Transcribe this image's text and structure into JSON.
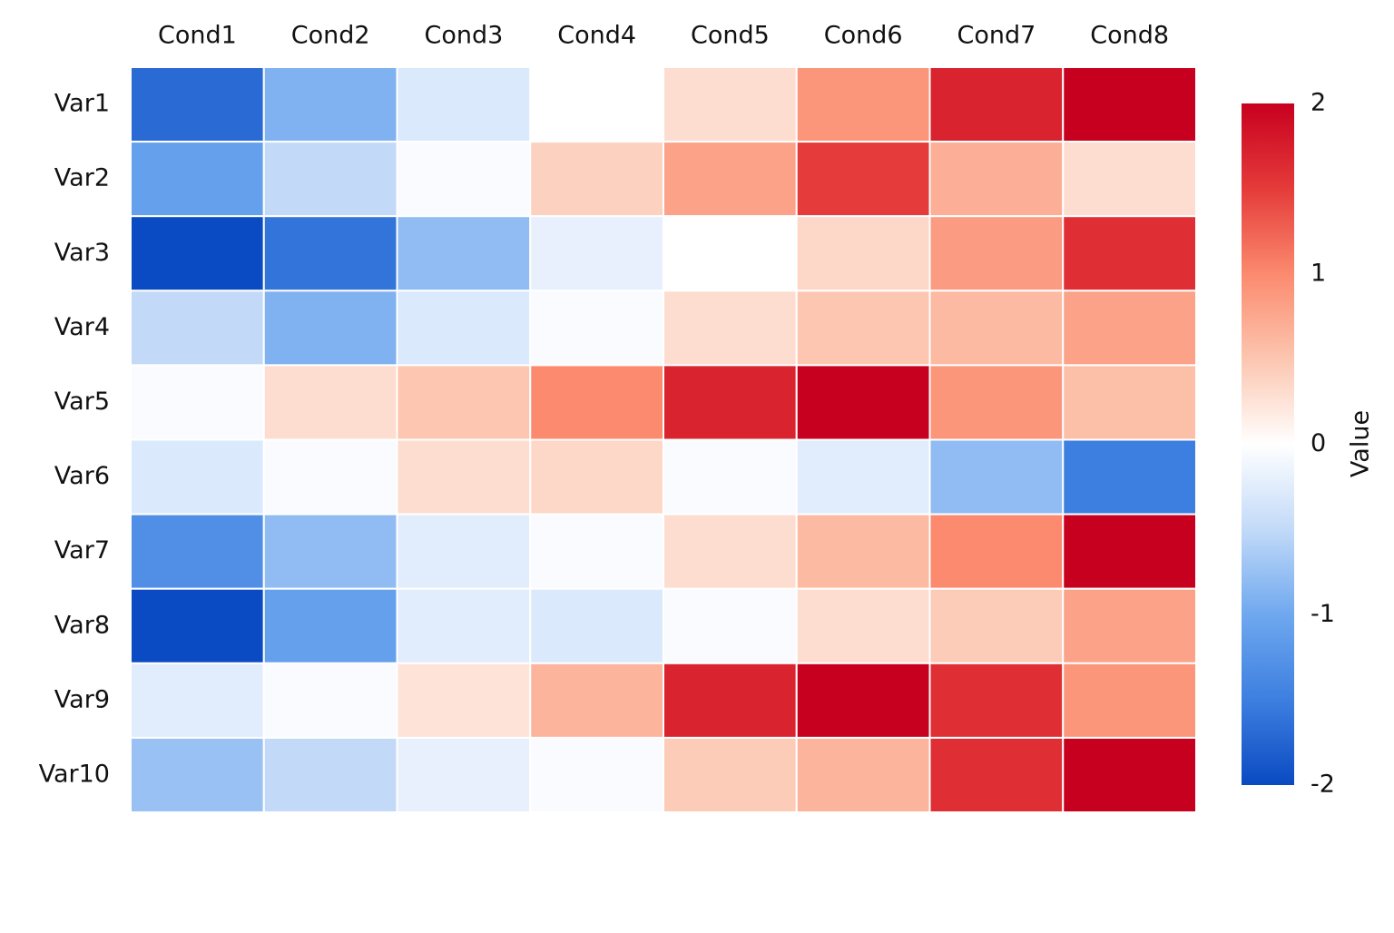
{
  "chart_data": {
    "type": "heatmap",
    "x": [
      "Cond1",
      "Cond2",
      "Cond3",
      "Cond4",
      "Cond5",
      "Cond6",
      "Cond7",
      "Cond8"
    ],
    "y": [
      "Var1",
      "Var2",
      "Var3",
      "Var4",
      "Var5",
      "Var6",
      "Var7",
      "Var8",
      "Var9",
      "Var10"
    ],
    "z": [
      [
        -1.7,
        -0.9,
        -0.3,
        0.0,
        0.3,
        0.9,
        1.7,
        2.0
      ],
      [
        -1.1,
        -0.5,
        -0.05,
        0.4,
        0.8,
        1.5,
        0.7,
        0.3
      ],
      [
        -2.0,
        -1.6,
        -0.8,
        -0.2,
        0.0,
        0.35,
        0.85,
        1.6
      ],
      [
        -0.5,
        -0.9,
        -0.3,
        -0.05,
        0.3,
        0.5,
        0.6,
        0.8
      ],
      [
        -0.05,
        0.3,
        0.5,
        1.0,
        1.7,
        2.0,
        0.9,
        0.55
      ],
      [
        -0.3,
        -0.05,
        0.3,
        0.35,
        -0.05,
        -0.25,
        -0.8,
        -1.5
      ],
      [
        -1.3,
        -0.8,
        -0.25,
        -0.05,
        0.3,
        0.6,
        1.0,
        2.0
      ],
      [
        -2.0,
        -1.1,
        -0.25,
        -0.3,
        -0.05,
        0.3,
        0.45,
        0.8
      ],
      [
        -0.25,
        -0.05,
        0.25,
        0.65,
        1.7,
        2.0,
        1.6,
        0.9
      ],
      [
        -0.75,
        -0.5,
        -0.2,
        -0.05,
        0.45,
        0.65,
        1.6,
        2.0
      ]
    ],
    "zlim": [
      -2,
      2
    ],
    "zticks": [
      -2,
      -1,
      0,
      1,
      2
    ],
    "colorbar_label": "Value",
    "colorscale": [
      "#0a4ac2",
      "#3d7fe0",
      "#6fa8ef",
      "#c2daf8",
      "#ffffff",
      "#fcc6b0",
      "#fb8a6e",
      "#e53b3a",
      "#c8001f"
    ]
  }
}
